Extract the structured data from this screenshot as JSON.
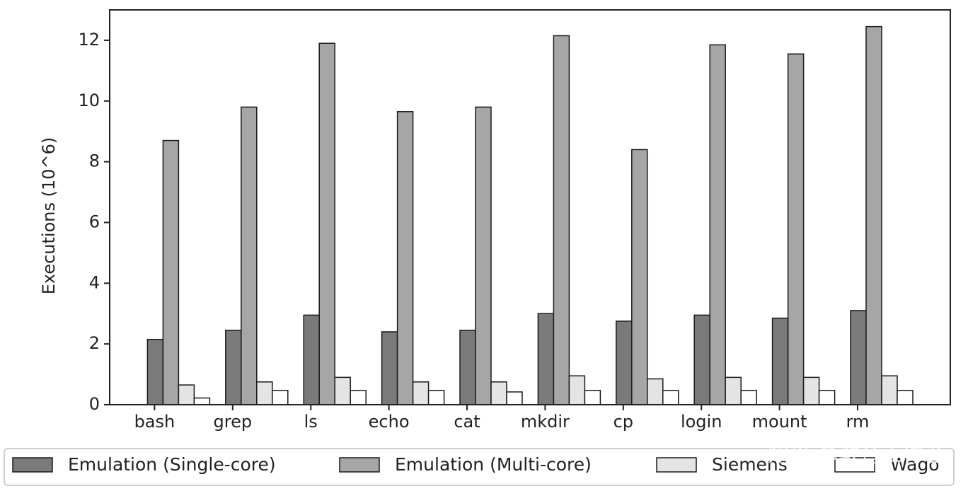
{
  "chart_data": {
    "type": "bar",
    "title": "",
    "xlabel": "",
    "ylabel": "Executions (10^6)",
    "ylim": [
      0,
      13
    ],
    "yticks": [
      0,
      2,
      4,
      6,
      8,
      10,
      12
    ],
    "grid": false,
    "legend_position": "bottom",
    "categories": [
      "bash",
      "grep",
      "ls",
      "echo",
      "cat",
      "mkdir",
      "cp",
      "login",
      "mount",
      "rm"
    ],
    "series": [
      {
        "name": "Emulation (Single-core)",
        "color": "#7a7a7a",
        "values": [
          2.15,
          2.45,
          2.95,
          2.4,
          2.45,
          3.0,
          2.75,
          2.95,
          2.85,
          3.1
        ]
      },
      {
        "name": "Emulation (Multi-core)",
        "color": "#a6a6a6",
        "values": [
          8.7,
          9.8,
          11.9,
          9.65,
          9.8,
          12.15,
          8.4,
          11.85,
          11.55,
          12.45
        ]
      },
      {
        "name": "Siemens",
        "color": "#e4e4e4",
        "values": [
          0.65,
          0.75,
          0.9,
          0.75,
          0.75,
          0.95,
          0.85,
          0.9,
          0.9,
          0.95
        ]
      },
      {
        "name": "Wago",
        "color": "#ffffff",
        "values": [
          0.22,
          0.47,
          0.47,
          0.47,
          0.42,
          0.47,
          0.47,
          0.47,
          0.47,
          0.47
        ]
      }
    ]
  },
  "watermark": "知乎 @教育工作者"
}
